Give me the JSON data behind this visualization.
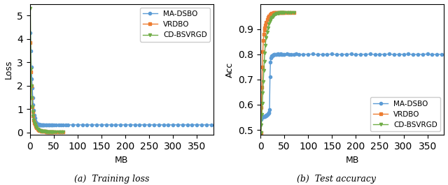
{
  "fig_width": 6.4,
  "fig_height": 2.65,
  "dpi": 100,
  "left_caption": "(a)  Training loss",
  "right_caption": "(b)  Test accuracy",
  "left_ylabel": "Loss",
  "right_ylabel": "Acc",
  "xlabel": "MB",
  "ma_dsbo_loss_mb": [
    1,
    2,
    3,
    4,
    5,
    6,
    7,
    8,
    9,
    10,
    11,
    12,
    13,
    14,
    15,
    16,
    17,
    18,
    19,
    20,
    21,
    22,
    23,
    24,
    25,
    26,
    27,
    28,
    29,
    30,
    32,
    34,
    36,
    38,
    40,
    42,
    44,
    46,
    48,
    50,
    55,
    60,
    65,
    70,
    75,
    80,
    90,
    100,
    110,
    120,
    130,
    140,
    150,
    160,
    170,
    180,
    190,
    200,
    210,
    220,
    230,
    240,
    250,
    260,
    270,
    280,
    290,
    300,
    310,
    320,
    330,
    340,
    350,
    360,
    370,
    380
  ],
  "ma_dsbo_loss_vals": [
    4.27,
    3.5,
    2.8,
    2.3,
    1.9,
    1.5,
    1.2,
    0.95,
    0.75,
    0.62,
    0.52,
    0.46,
    0.41,
    0.39,
    0.37,
    0.36,
    0.355,
    0.35,
    0.345,
    0.34,
    0.338,
    0.336,
    0.335,
    0.334,
    0.333,
    0.332,
    0.331,
    0.332,
    0.333,
    0.332,
    0.335,
    0.334,
    0.332,
    0.333,
    0.331,
    0.332,
    0.334,
    0.333,
    0.332,
    0.333,
    0.335,
    0.334,
    0.333,
    0.332,
    0.335,
    0.333,
    0.334,
    0.332,
    0.335,
    0.333,
    0.334,
    0.332,
    0.333,
    0.335,
    0.334,
    0.333,
    0.332,
    0.335,
    0.334,
    0.332,
    0.333,
    0.334,
    0.335,
    0.332,
    0.333,
    0.334,
    0.332,
    0.335,
    0.334,
    0.333,
    0.332,
    0.335,
    0.334,
    0.332,
    0.333,
    0.334
  ],
  "vrdbo_loss_mb": [
    1,
    2,
    3,
    4,
    5,
    6,
    7,
    8,
    9,
    10,
    12,
    14,
    16,
    18,
    20,
    22,
    24,
    26,
    28,
    30,
    32,
    34,
    36,
    38,
    40,
    42,
    44,
    46,
    48,
    50,
    55,
    60,
    65,
    70
  ],
  "vrdbo_loss_vals": [
    3.85,
    2.6,
    2.0,
    1.5,
    1.1,
    0.9,
    0.7,
    0.55,
    0.42,
    0.35,
    0.26,
    0.2,
    0.15,
    0.12,
    0.09,
    0.075,
    0.065,
    0.058,
    0.052,
    0.048,
    0.044,
    0.042,
    0.04,
    0.038,
    0.037,
    0.036,
    0.035,
    0.034,
    0.033,
    0.032,
    0.03,
    0.028,
    0.027,
    0.026
  ],
  "cd_loss_mb": [
    1,
    2,
    3,
    4,
    5,
    6,
    7,
    8,
    9,
    10,
    12,
    14,
    16,
    18,
    20,
    22,
    24,
    26,
    28,
    30,
    32,
    34,
    36,
    38,
    40,
    42,
    44,
    46,
    48,
    50,
    55,
    60,
    65,
    70
  ],
  "cd_loss_vals": [
    5.3,
    2.7,
    2.0,
    1.5,
    1.1,
    0.9,
    0.7,
    0.55,
    0.42,
    0.35,
    0.26,
    0.2,
    0.15,
    0.12,
    0.09,
    0.075,
    0.065,
    0.058,
    0.052,
    0.048,
    0.044,
    0.042,
    0.04,
    0.038,
    0.037,
    0.036,
    0.035,
    0.034,
    0.033,
    0.032,
    0.03,
    0.028,
    0.027,
    0.026
  ],
  "ma_dsbo_acc_mb": [
    1,
    2,
    3,
    4,
    5,
    6,
    7,
    8,
    9,
    10,
    11,
    12,
    13,
    14,
    15,
    16,
    17,
    18,
    19,
    20,
    21,
    22,
    23,
    24,
    25,
    26,
    27,
    28,
    29,
    30,
    32,
    34,
    36,
    38,
    40,
    42,
    44,
    46,
    48,
    50,
    55,
    60,
    65,
    70,
    75,
    80,
    90,
    100,
    110,
    120,
    130,
    140,
    150,
    160,
    170,
    180,
    190,
    200,
    210,
    220,
    230,
    240,
    250,
    260,
    270,
    280,
    290,
    300,
    310,
    320,
    330,
    340,
    350,
    360,
    370,
    380
  ],
  "ma_dsbo_acc_vals": [
    0.543,
    0.548,
    0.55,
    0.551,
    0.552,
    0.553,
    0.553,
    0.554,
    0.554,
    0.555,
    0.557,
    0.558,
    0.559,
    0.56,
    0.562,
    0.564,
    0.567,
    0.57,
    0.58,
    0.71,
    0.77,
    0.785,
    0.79,
    0.793,
    0.795,
    0.796,
    0.797,
    0.798,
    0.799,
    0.8,
    0.8,
    0.8,
    0.801,
    0.799,
    0.8,
    0.801,
    0.799,
    0.8,
    0.8,
    0.8,
    0.801,
    0.799,
    0.8,
    0.8,
    0.801,
    0.799,
    0.8,
    0.8,
    0.801,
    0.799,
    0.8,
    0.8,
    0.801,
    0.799,
    0.8,
    0.8,
    0.801,
    0.799,
    0.8,
    0.8,
    0.801,
    0.799,
    0.8,
    0.8,
    0.801,
    0.799,
    0.8,
    0.8,
    0.801,
    0.799,
    0.8,
    0.8,
    0.801,
    0.799,
    0.8,
    0.8
  ],
  "vrdbo_acc_mb": [
    1,
    2,
    3,
    4,
    5,
    6,
    7,
    8,
    9,
    10,
    12,
    14,
    16,
    18,
    20,
    22,
    24,
    26,
    28,
    30,
    32,
    34,
    36,
    38,
    40,
    42,
    44,
    46,
    48,
    50,
    55,
    60,
    65,
    70
  ],
  "vrdbo_acc_vals": [
    0.49,
    0.59,
    0.67,
    0.75,
    0.81,
    0.855,
    0.88,
    0.895,
    0.905,
    0.915,
    0.928,
    0.938,
    0.946,
    0.953,
    0.958,
    0.961,
    0.963,
    0.964,
    0.965,
    0.965,
    0.965,
    0.965,
    0.965,
    0.965,
    0.965,
    0.965,
    0.965,
    0.965,
    0.965,
    0.965,
    0.965,
    0.965,
    0.965,
    0.965
  ],
  "cd_acc_mb": [
    1,
    2,
    3,
    4,
    5,
    6,
    7,
    8,
    9,
    10,
    12,
    14,
    16,
    18,
    20,
    22,
    24,
    26,
    28,
    30,
    32,
    34,
    36,
    38,
    40,
    42,
    44,
    46,
    48,
    50,
    55,
    60,
    65,
    70
  ],
  "cd_acc_vals": [
    0.49,
    0.52,
    0.56,
    0.605,
    0.648,
    0.692,
    0.735,
    0.772,
    0.806,
    0.834,
    0.866,
    0.888,
    0.905,
    0.92,
    0.932,
    0.94,
    0.946,
    0.95,
    0.954,
    0.957,
    0.96,
    0.962,
    0.963,
    0.964,
    0.965,
    0.965,
    0.965,
    0.965,
    0.965,
    0.965,
    0.965,
    0.965,
    0.965,
    0.965
  ],
  "color_madsbo": "#5b9bd5",
  "color_vrdbo": "#ed7d31",
  "color_cd": "#70ad47",
  "ylim_loss": [
    -0.1,
    5.5
  ],
  "yticks_loss": [
    0,
    1,
    2,
    3,
    4,
    5
  ],
  "ylim_acc": [
    0.48,
    1.0
  ],
  "yticks_acc": [
    0.5,
    0.6,
    0.7,
    0.8,
    0.9
  ],
  "xlim": [
    0,
    385
  ],
  "xticks": [
    0,
    50,
    100,
    150,
    200,
    250,
    300,
    350
  ]
}
